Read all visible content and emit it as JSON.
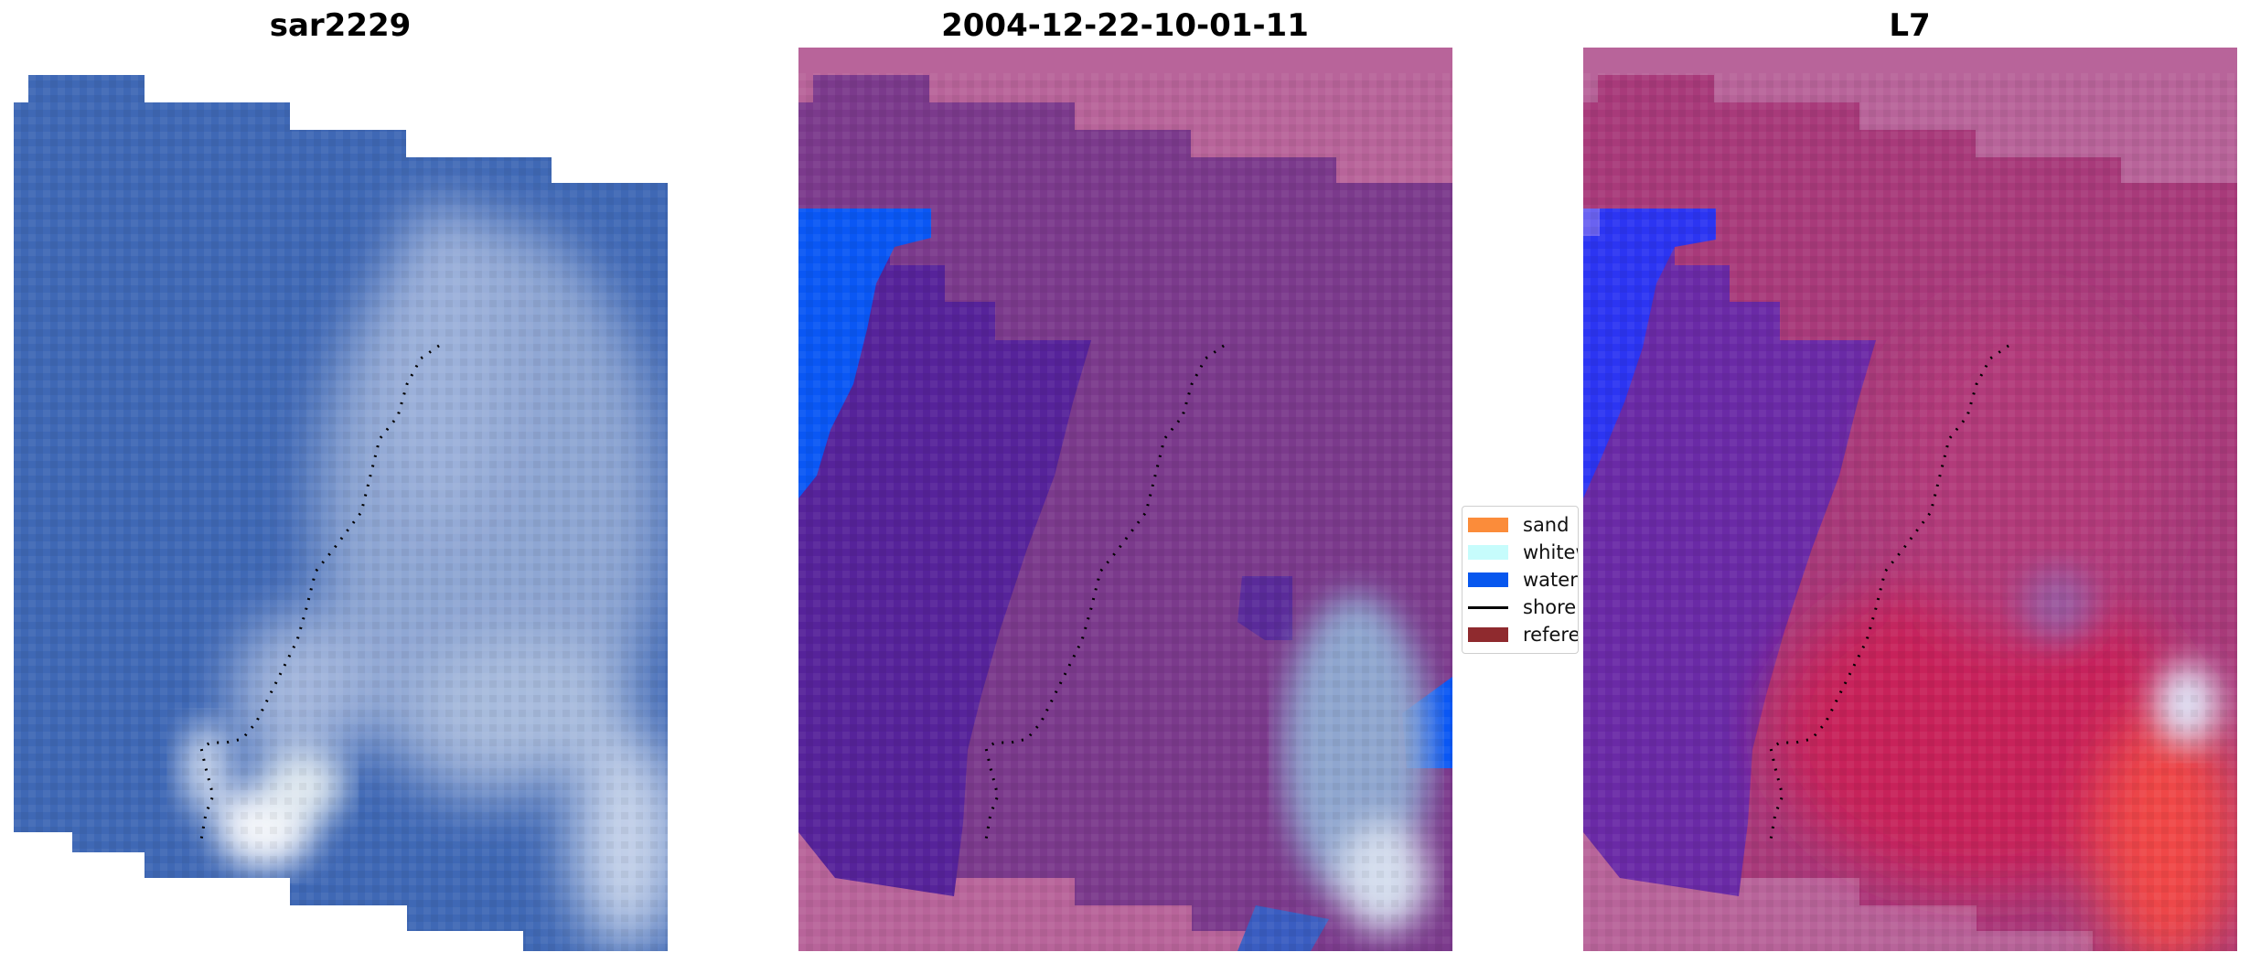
{
  "panels": [
    {
      "title": "sar2229"
    },
    {
      "title": "2004-12-22-10-01-11"
    },
    {
      "title": "L7"
    }
  ],
  "legend": [
    {
      "label": "sand",
      "color": "#fb8c3a"
    },
    {
      "label": "whitewater",
      "color": "#c6fcfc"
    },
    {
      "label": "water",
      "color": "#0757ee"
    },
    {
      "label": "shoreline",
      "color": "#000000"
    },
    {
      "label": "reference shoreline",
      "color": "#8f2a2e"
    }
  ],
  "colors": {
    "rgb_water": "#3f68b5",
    "rgb_surf": "#aabbd9",
    "class_water_blue": "#0a57f4",
    "class_overlay_purple": "#57239a",
    "class_land_pink": "#b8649a",
    "index_water": "#6a2aa6",
    "index_land_red": "#cc2250",
    "index_blue": "#2c35f2"
  }
}
